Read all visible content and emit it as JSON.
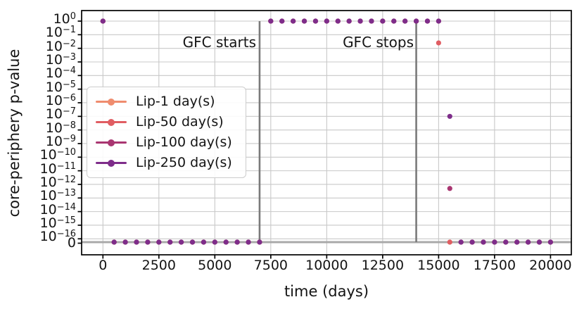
{
  "chart_data": {
    "type": "scatter",
    "title": "",
    "xlabel": "time (days)",
    "ylabel": "core-periphery p-value",
    "xlim": [
      -1000,
      21000
    ],
    "yscale": "symlog",
    "ylim_note": "decades 1e0 down to 1e-16, plus a 0 level drawn just below 1e-16",
    "grid": true,
    "legend_position": "center-left",
    "x_ticks": [
      0,
      2500,
      5000,
      7500,
      10000,
      12500,
      15000,
      17500,
      20000
    ],
    "y_tick_exponents": [
      0,
      -1,
      -2,
      -3,
      -4,
      -5,
      -6,
      -7,
      -8,
      -9,
      -10,
      -11,
      -12,
      -13,
      -14,
      -15,
      -16
    ],
    "y_zero_label": "0",
    "vlines": [
      {
        "x": 7000,
        "label": "GFC starts"
      },
      {
        "x": 14000,
        "label": "GFC stops"
      }
    ],
    "hline_y": 0,
    "x": [
      0,
      500,
      1000,
      1500,
      2000,
      2500,
      3000,
      3500,
      4000,
      4500,
      5000,
      5500,
      6000,
      6500,
      7000,
      7500,
      8000,
      8500,
      9000,
      9500,
      10000,
      10500,
      11000,
      11500,
      12000,
      12500,
      13000,
      13500,
      14000,
      14500,
      15000,
      15500,
      16000,
      16500,
      17000,
      17500,
      18000,
      18500,
      19000,
      19500,
      20000
    ],
    "series": [
      {
        "name": "Lip-1 day(s)",
        "color": "#EF8C6E",
        "p": [
          1,
          0,
          0,
          0,
          0,
          0,
          0,
          0,
          0,
          0,
          0,
          0,
          0,
          0,
          0,
          1,
          1,
          1,
          1,
          1,
          1,
          1,
          1,
          1,
          1,
          1,
          1,
          1,
          1,
          1,
          1,
          0,
          0,
          0,
          0,
          0,
          0,
          0,
          0,
          0,
          0
        ]
      },
      {
        "name": "Lip-50 day(s)",
        "color": "#E05D62",
        "p": [
          1,
          0,
          0,
          0,
          0,
          0,
          0,
          0,
          0,
          0,
          0,
          0,
          0,
          0,
          0,
          1,
          1,
          1,
          1,
          1,
          1,
          1,
          1,
          1,
          1,
          1,
          1,
          1,
          1,
          1,
          0.025,
          0,
          0,
          0,
          0,
          0,
          0,
          0,
          0,
          0,
          0
        ]
      },
      {
        "name": "Lip-100 day(s)",
        "color": "#A93671",
        "p": [
          1,
          0,
          0,
          0,
          0,
          0,
          0,
          0,
          0,
          0,
          0,
          0,
          0,
          0,
          0,
          1,
          1,
          1,
          1,
          1,
          1,
          1,
          1,
          1,
          1,
          1,
          1,
          1,
          1,
          1,
          1,
          5e-13,
          0,
          0,
          0,
          0,
          0,
          0,
          0,
          0,
          0
        ]
      },
      {
        "name": "Lip-250 day(s)",
        "color": "#7E2D8A",
        "p": [
          1,
          0,
          0,
          0,
          0,
          0,
          0,
          0,
          0,
          0,
          0,
          0,
          0,
          0,
          0,
          1,
          1,
          1,
          1,
          1,
          1,
          1,
          1,
          1,
          1,
          1,
          1,
          1,
          1,
          1,
          1,
          1e-07,
          0,
          0,
          0,
          0,
          0,
          0,
          0,
          0,
          0
        ]
      }
    ],
    "colors": {
      "grid": "#C8C8C8",
      "event_line": "#7A7A7A",
      "zero_line": "#A9A9A9",
      "spine": "#000000",
      "text": "#141414",
      "legend_border": "#CCCCCC"
    }
  }
}
